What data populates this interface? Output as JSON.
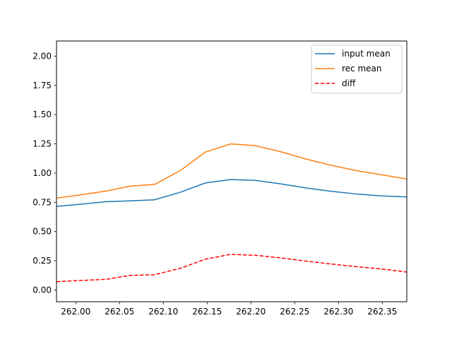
{
  "chart_data": {
    "type": "line",
    "title": "",
    "xlabel": "",
    "ylabel": "",
    "xlim": [
      261.978,
      262.378
    ],
    "ylim": [
      -0.1,
      2.13
    ],
    "xticks": [
      "262.00",
      "262.05",
      "262.10",
      "262.15",
      "262.20",
      "262.25",
      "262.30",
      "262.35"
    ],
    "yticks": [
      "0.00",
      "0.25",
      "0.50",
      "0.75",
      "1.00",
      "1.25",
      "1.50",
      "1.75",
      "2.00"
    ],
    "grid": false,
    "legend_position": "top-right",
    "x": [
      261.978,
      262.0,
      262.034,
      262.062,
      262.09,
      262.12,
      262.148,
      262.177,
      262.205,
      262.233,
      262.263,
      262.291,
      262.32,
      262.348,
      262.378
    ],
    "series": [
      {
        "name": "input mean",
        "color": "#1f77b4",
        "dash": false,
        "values": [
          0.715,
          0.73,
          0.755,
          0.763,
          0.772,
          0.838,
          0.916,
          0.945,
          0.938,
          0.909,
          0.873,
          0.845,
          0.822,
          0.806,
          0.796
        ]
      },
      {
        "name": "rec mean",
        "color": "#ff7f0e",
        "dash": false,
        "values": [
          0.786,
          0.808,
          0.846,
          0.888,
          0.903,
          1.025,
          1.18,
          1.25,
          1.235,
          1.185,
          1.12,
          1.068,
          1.022,
          0.987,
          0.95
        ]
      },
      {
        "name": "diff",
        "color": "#ff0000",
        "dash": true,
        "values": [
          0.071,
          0.08,
          0.091,
          0.125,
          0.131,
          0.187,
          0.264,
          0.305,
          0.297,
          0.276,
          0.247,
          0.223,
          0.2,
          0.181,
          0.154
        ]
      }
    ]
  }
}
